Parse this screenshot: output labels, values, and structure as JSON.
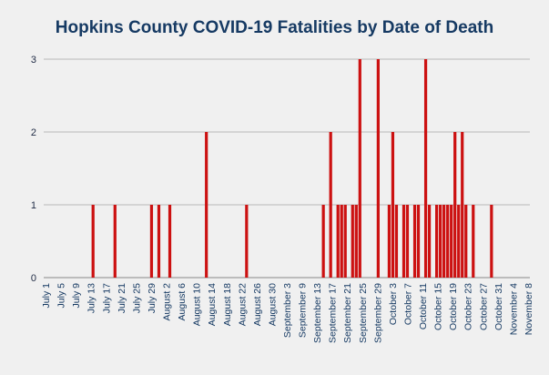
{
  "chart_data": {
    "type": "bar",
    "title": "Hopkins County COVID-19 Fatalities by Date of Death",
    "xlabel": "",
    "ylabel": "",
    "ylim": [
      0,
      3
    ],
    "yticks": [
      0,
      1,
      2,
      3
    ],
    "grid": true,
    "bar_color": "#cc1111",
    "x_start": "2020-07-01",
    "x_end": "2020-11-10",
    "x_tick_labels": [
      "July 1",
      "July 5",
      "July 9",
      "July 13",
      "July 17",
      "July 21",
      "July 25",
      "July 29",
      "August 2",
      "August 6",
      "August 10",
      "August 14",
      "August 18",
      "August 22",
      "August 26",
      "August 30",
      "September 3",
      "September 9",
      "September 13",
      "September 17",
      "September 21",
      "September 25",
      "September 29",
      "October 3",
      "October 7",
      "October 11",
      "October 15",
      "October 19",
      "October 23",
      "October 27",
      "October 31",
      "November 4",
      "November 8"
    ],
    "points": [
      {
        "date": "2020-07-14",
        "value": 1
      },
      {
        "date": "2020-07-20",
        "value": 1
      },
      {
        "date": "2020-07-30",
        "value": 1
      },
      {
        "date": "2020-08-01",
        "value": 1
      },
      {
        "date": "2020-08-04",
        "value": 1
      },
      {
        "date": "2020-08-14",
        "value": 2
      },
      {
        "date": "2020-08-25",
        "value": 1
      },
      {
        "date": "2020-09-15",
        "value": 1
      },
      {
        "date": "2020-09-17",
        "value": 2
      },
      {
        "date": "2020-09-19",
        "value": 1
      },
      {
        "date": "2020-09-20",
        "value": 1
      },
      {
        "date": "2020-09-21",
        "value": 1
      },
      {
        "date": "2020-09-23",
        "value": 1
      },
      {
        "date": "2020-09-24",
        "value": 1
      },
      {
        "date": "2020-09-25",
        "value": 3
      },
      {
        "date": "2020-09-30",
        "value": 3
      },
      {
        "date": "2020-10-03",
        "value": 1
      },
      {
        "date": "2020-10-04",
        "value": 2
      },
      {
        "date": "2020-10-05",
        "value": 1
      },
      {
        "date": "2020-10-07",
        "value": 1
      },
      {
        "date": "2020-10-08",
        "value": 1
      },
      {
        "date": "2020-10-10",
        "value": 1
      },
      {
        "date": "2020-10-11",
        "value": 1
      },
      {
        "date": "2020-10-13",
        "value": 3
      },
      {
        "date": "2020-10-14",
        "value": 1
      },
      {
        "date": "2020-10-16",
        "value": 1
      },
      {
        "date": "2020-10-17",
        "value": 1
      },
      {
        "date": "2020-10-18",
        "value": 1
      },
      {
        "date": "2020-10-19",
        "value": 1
      },
      {
        "date": "2020-10-20",
        "value": 1
      },
      {
        "date": "2020-10-21",
        "value": 2
      },
      {
        "date": "2020-10-22",
        "value": 1
      },
      {
        "date": "2020-10-23",
        "value": 2
      },
      {
        "date": "2020-10-24",
        "value": 1
      },
      {
        "date": "2020-10-26",
        "value": 1
      },
      {
        "date": "2020-10-31",
        "value": 1
      }
    ]
  }
}
